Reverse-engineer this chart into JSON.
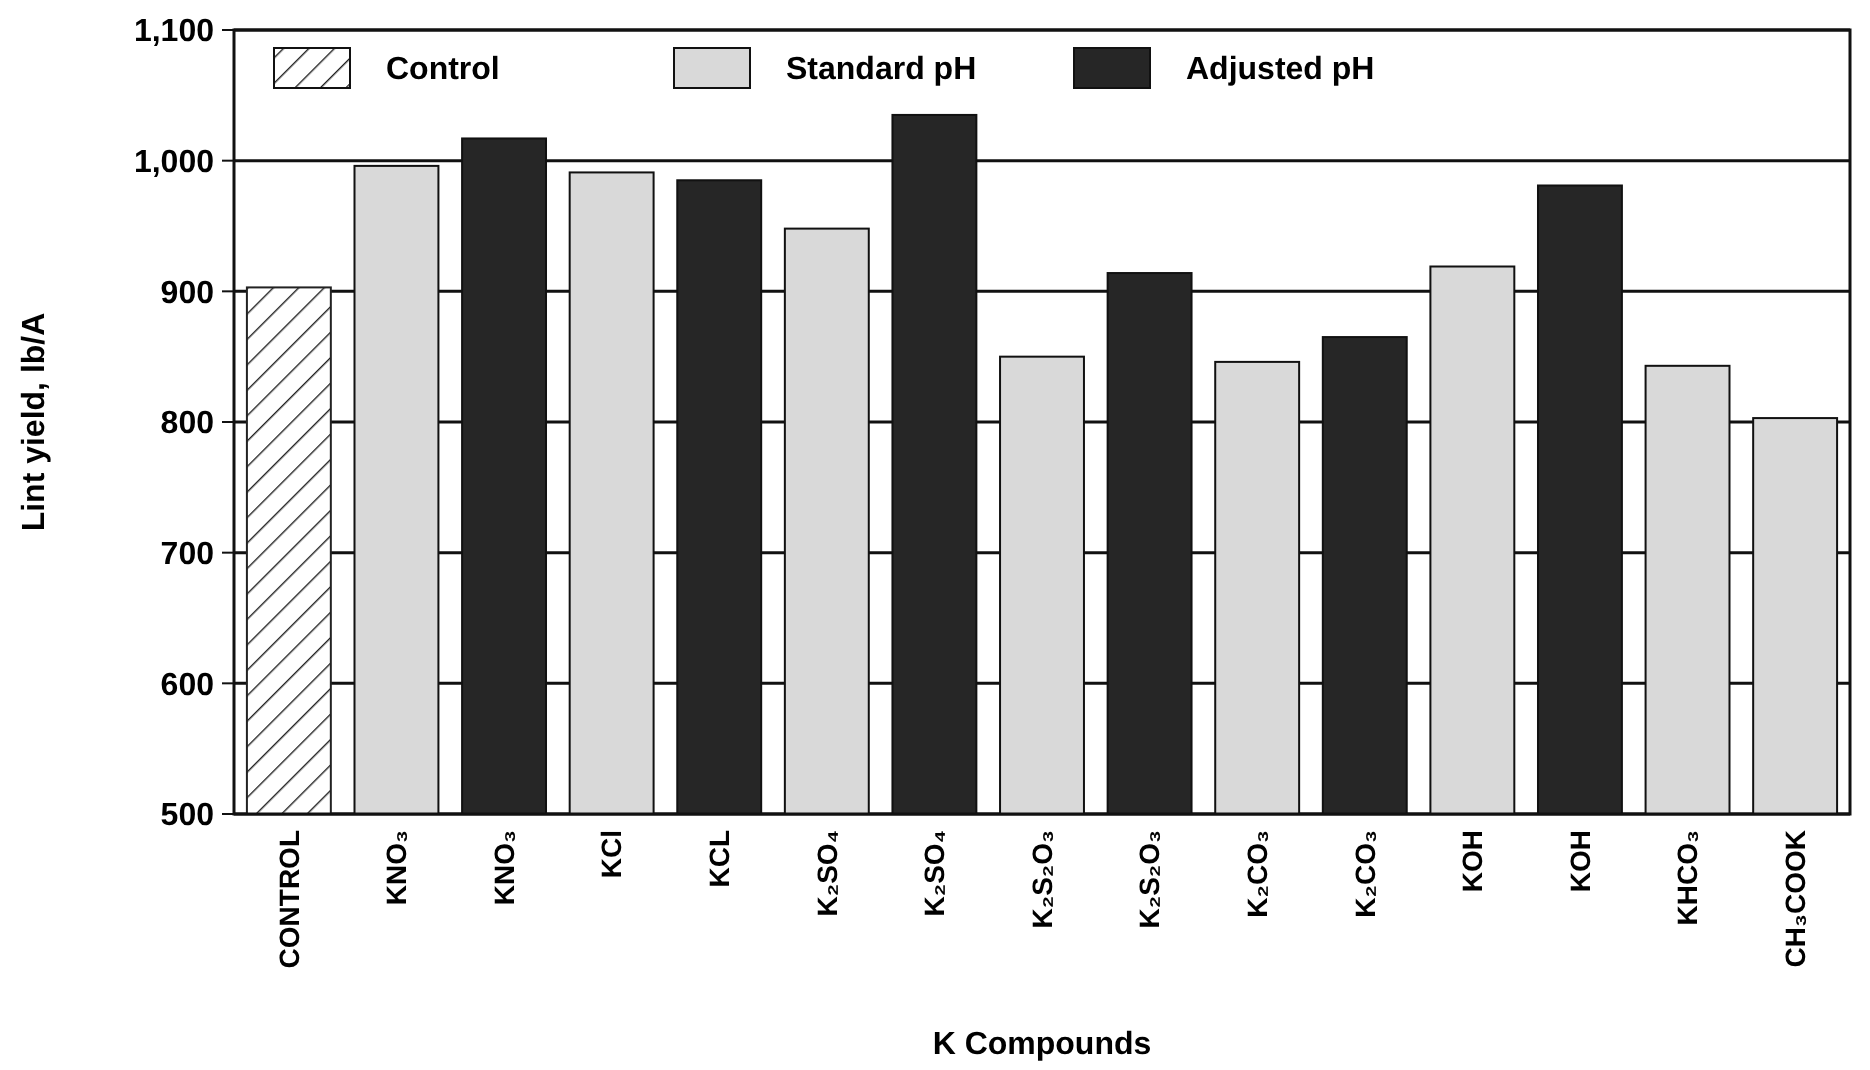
{
  "chart_data": {
    "type": "bar",
    "xlabel": "K Compounds",
    "ylabel": "Lint yield, lb/A",
    "categories": [
      "CONTROL",
      "KNO₃",
      "KNO₃",
      "KCl",
      "KCL",
      "K₂SO₄",
      "K₂SO₄",
      "K₂S₂O₃",
      "K₂S₂O₃",
      "K₂CO₃",
      "K₂CO₃",
      "KOH",
      "KOH",
      "KHCO₃",
      "CH₃COOK"
    ],
    "series": [
      {
        "name": "Control",
        "color": "#222222",
        "values": [
          903,
          null,
          null,
          null,
          null,
          null,
          null,
          null,
          null,
          null,
          null,
          null,
          null,
          null,
          null
        ]
      },
      {
        "name": "Standard pH",
        "color": "#d9d9d9",
        "values": [
          null,
          996,
          null,
          991,
          null,
          948,
          null,
          850,
          null,
          846,
          null,
          919,
          null,
          843,
          803
        ]
      },
      {
        "name": "Adjusted pH",
        "color": "#262626",
        "values": [
          null,
          null,
          1017,
          null,
          985,
          null,
          1035,
          null,
          914,
          null,
          865,
          null,
          981,
          null,
          null
        ]
      }
    ],
    "ylim": [
      500,
      1100
    ],
    "yticks": [
      500,
      600,
      700,
      800,
      900,
      {
        "value": 1000,
        "label": "1,000"
      },
      {
        "value": 1100,
        "label": "1,100"
      }
    ],
    "grid": "y",
    "legend": "top"
  }
}
